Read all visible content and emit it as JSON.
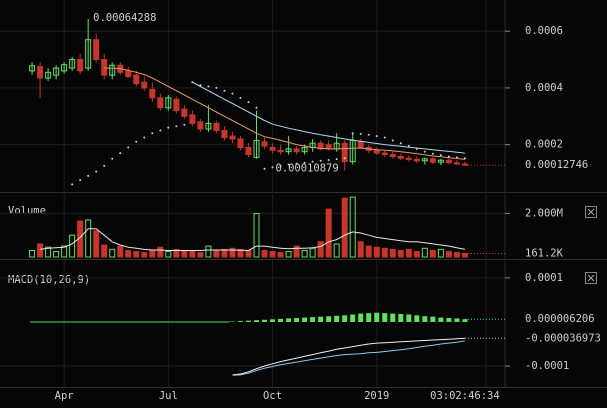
{
  "chart_data": [
    {
      "type": "candlestick",
      "xlim": [
        -4,
        59
      ],
      "xticks": [
        {
          "value": 4,
          "label": "Apr"
        },
        {
          "value": 17,
          "label": "Jul"
        },
        {
          "value": 30,
          "label": "Oct"
        },
        {
          "value": 43,
          "label": "2019"
        }
      ],
      "countdown": "03:02:46:34",
      "ylim": [
        4e-05,
        0.00071
      ],
      "yticks": [
        0.0006,
        0.0004,
        0.0002
      ],
      "grid": true,
      "up_color": "#5fe35f",
      "down_color": "#c8352c",
      "high_index": 7,
      "low_index": 39,
      "ohlc": [
        [
          0.00046,
          0.00049,
          0.000445,
          0.000478
        ],
        [
          0.000475,
          0.00049,
          0.000365,
          0.000435
        ],
        [
          0.000435,
          0.00047,
          0.000425,
          0.000455
        ],
        [
          0.000445,
          0.00048,
          0.00043,
          0.00047
        ],
        [
          0.00046,
          0.00049,
          0.00045,
          0.000482
        ],
        [
          0.00047,
          0.00051,
          0.00046,
          0.0005
        ],
        [
          0.0005,
          0.00052,
          0.00045,
          0.00046
        ],
        [
          0.00047,
          0.00064288,
          0.00046,
          0.00057
        ],
        [
          0.00057,
          0.00059,
          0.00049,
          0.0005
        ],
        [
          0.0005,
          0.00052,
          0.00043,
          0.000445
        ],
        [
          0.000445,
          0.00049,
          0.00043,
          0.00048
        ],
        [
          0.00048,
          0.00049,
          0.000445,
          0.000455
        ],
        [
          0.00046,
          0.000475,
          0.000435,
          0.00044
        ],
        [
          0.000445,
          0.00046,
          0.000405,
          0.000415
        ],
        [
          0.00042,
          0.00044,
          0.00039,
          0.0004
        ],
        [
          0.000395,
          0.00042,
          0.00035,
          0.000365
        ],
        [
          0.000365,
          0.00038,
          0.00032,
          0.00033
        ],
        [
          0.00033,
          0.000375,
          0.00032,
          0.000365
        ],
        [
          0.00036,
          0.00037,
          0.00031,
          0.00032
        ],
        [
          0.000325,
          0.00034,
          0.00029,
          0.0003
        ],
        [
          0.000305,
          0.00032,
          0.000265,
          0.000275
        ],
        [
          0.00028,
          0.00029,
          0.000245,
          0.000255
        ],
        [
          0.000255,
          0.00034,
          0.000245,
          0.000275
        ],
        [
          0.000275,
          0.000285,
          0.00024,
          0.00025
        ],
        [
          0.00025,
          0.000265,
          0.000215,
          0.000225
        ],
        [
          0.00023,
          0.000245,
          0.000205,
          0.00022
        ],
        [
          0.00022,
          0.00023,
          0.00018,
          0.00019
        ],
        [
          0.00019,
          0.000205,
          0.000155,
          0.000165
        ],
        [
          0.000155,
          0.00032,
          0.00015,
          0.000215
        ],
        [
          0.00021,
          0.000225,
          0.000185,
          0.000195
        ],
        [
          0.00019,
          0.000205,
          0.00017,
          0.00018
        ],
        [
          0.00018,
          0.0002,
          0.000165,
          0.000175
        ],
        [
          0.000175,
          0.00023,
          0.000165,
          0.000185
        ],
        [
          0.000185,
          0.000195,
          0.000165,
          0.000175
        ],
        [
          0.000175,
          0.0002,
          0.000165,
          0.00019
        ],
        [
          0.00019,
          0.00022,
          0.000175,
          0.000205
        ],
        [
          0.000205,
          0.000215,
          0.00018,
          0.000185
        ],
        [
          0.0002,
          0.000215,
          0.00018,
          0.000185
        ],
        [
          0.000185,
          0.00024,
          0.000175,
          0.000205
        ],
        [
          0.000205,
          0.000215,
          0.00010879,
          0.00014
        ],
        [
          0.00014,
          0.00024,
          0.00013,
          0.000215
        ],
        [
          0.00021,
          0.00022,
          0.000185,
          0.00019
        ],
        [
          0.00019,
          0.0002,
          0.00017,
          0.00018
        ],
        [
          0.00018,
          0.00019,
          0.000165,
          0.00017
        ],
        [
          0.00017,
          0.00018,
          0.000155,
          0.000165
        ],
        [
          0.000165,
          0.000175,
          0.00015,
          0.000158
        ],
        [
          0.000158,
          0.000168,
          0.000145,
          0.000152
        ],
        [
          0.000152,
          0.000162,
          0.00014,
          0.000148
        ],
        [
          0.000148,
          0.000158,
          0.000135,
          0.000143
        ],
        [
          0.000143,
          0.000155,
          0.00013,
          0.00015
        ],
        [
          0.00015,
          0.000156,
          0.000132,
          0.000138
        ],
        [
          0.000138,
          0.00015,
          0.000128,
          0.000145
        ],
        [
          0.000145,
          0.00015,
          0.00013,
          0.000136
        ],
        [
          0.000136,
          0.000145,
          0.000128,
          0.000132
        ],
        [
          0.000132,
          0.00014,
          0.000125,
          0.00012746
        ]
      ],
      "series": [
        {
          "color": "#e39a6a",
          "style": "line",
          "values": [
            null,
            null,
            null,
            null,
            null,
            null,
            null,
            null,
            null,
            0.00047,
            0.00047,
            0.000468,
            0.000462,
            0.000455,
            0.000447,
            0.000435,
            0.00042,
            0.000405,
            0.00039,
            0.000375,
            0.00036,
            0.000345,
            0.00033,
            0.000315,
            0.0003,
            0.000285,
            0.00027,
            0.000255,
            0.00024,
            0.000228,
            0.000222,
            0.000215,
            0.000208,
            0.0002,
            0.000195,
            0.00019,
            0.000187,
            0.000185,
            0.000185,
            0.000186,
            0.000187,
            0.000188,
            0.000185,
            0.000182,
            0.00018,
            0.000178,
            0.000175,
            0.000172,
            0.000168,
            0.000164,
            0.00016,
            0.000157,
            0.000154,
            0.000151,
            0.000148
          ]
        },
        {
          "color": "#a9d9f2",
          "style": "line",
          "values": [
            null,
            null,
            null,
            null,
            null,
            null,
            null,
            null,
            null,
            null,
            null,
            null,
            null,
            null,
            null,
            null,
            null,
            null,
            null,
            null,
            0.00042,
            0.000405,
            0.00039,
            0.000375,
            0.00036,
            0.000345,
            0.00033,
            0.000315,
            0.0003,
            0.000285,
            0.000272,
            0.000265,
            0.000258,
            0.000252,
            0.000246,
            0.00024,
            0.000235,
            0.00023,
            0.000225,
            0.00022,
            0.000216,
            0.000212,
            0.000208,
            0.000204,
            0.0002,
            0.000197,
            0.000194,
            0.000191,
            0.000188,
            0.000185,
            0.000182,
            0.000179,
            0.000176,
            0.000173,
            0.00017
          ]
        },
        {
          "color": "#cfcfcf",
          "style": "dots",
          "values": [
            null,
            null,
            null,
            null,
            null,
            6e-05,
            7.5e-05,
            9e-05,
            0.000105,
            0.000125,
            0.00015,
            0.00017,
            0.00019,
            0.00021,
            0.000225,
            0.00024,
            0.00025,
            0.00026,
            0.000265,
            0.00027,
            0.00042,
            0.00041,
            0.000405,
            0.0004,
            0.00039,
            0.00038,
            0.000365,
            0.00035,
            0.00033,
            0.000115,
            0.00012,
            0.000125,
            0.00013,
            0.000133,
            0.000136,
            0.00014,
            0.000143,
            0.000146,
            0.000149,
            0.000152,
            0.00024,
            0.000238,
            0.000235,
            0.00023,
            0.000225,
            0.000215,
            0.000205,
            0.000195,
            0.000185,
            0.000175,
            0.000168,
            0.000163,
            0.000158,
            0.000155,
            0.000152
          ]
        }
      ]
    },
    {
      "type": "volume",
      "title": "Volume",
      "ylim": [
        0,
        2800000
      ],
      "yticks": [
        {
          "value": 2000000,
          "label": "2.000M"
        }
      ],
      "values": [
        300000,
        600000,
        450000,
        250000,
        500000,
        1000000,
        1650000,
        1700000,
        1200000,
        550000,
        350000,
        500000,
        300000,
        250000,
        200000,
        300000,
        450000,
        250000,
        350000,
        300000,
        250000,
        200000,
        500000,
        300000,
        350000,
        400000,
        350000,
        300000,
        2000000,
        300000,
        250000,
        200000,
        250000,
        500000,
        300000,
        400000,
        700000,
        2200000,
        600000,
        2700000,
        2750000,
        700000,
        500000,
        450000,
        400000,
        350000,
        300000,
        350000,
        250000,
        400000,
        300000,
        350000,
        250000,
        200000,
        161200
      ],
      "value_labels": [
        null,
        null,
        null,
        null,
        null,
        null,
        null,
        null,
        null,
        null,
        null,
        null,
        null,
        null,
        null,
        null,
        null,
        null,
        null,
        null,
        null,
        null,
        null,
        null,
        null,
        null,
        null,
        null,
        null,
        null,
        null,
        null,
        null,
        null,
        null,
        null,
        null,
        null,
        null,
        null,
        null,
        null,
        null,
        null,
        null,
        null,
        null,
        null,
        null,
        null,
        null,
        null,
        null,
        null,
        "161.2K"
      ],
      "series": [
        {
          "color": "#e8e8e8",
          "values": [
            null,
            350000,
            400000,
            420000,
            450000,
            600000,
            900000,
            1300000,
            1300000,
            1000000,
            700000,
            550000,
            450000,
            400000,
            350000,
            320000,
            320000,
            300000,
            300000,
            300000,
            300000,
            300000,
            320000,
            320000,
            320000,
            320000,
            310000,
            300000,
            500000,
            500000,
            450000,
            400000,
            380000,
            400000,
            400000,
            420000,
            480000,
            700000,
            800000,
            1000000,
            1150000,
            1100000,
            1000000,
            900000,
            850000,
            800000,
            750000,
            700000,
            700000,
            650000,
            600000,
            550000,
            500000,
            420000,
            350000
          ]
        }
      ]
    },
    {
      "type": "macd",
      "title": "MACD(10,26,9)",
      "ylim": [
        -0.000143,
        0.000136
      ],
      "yticks": [
        0.0001,
        -0.0001
      ],
      "hist_color": "#5fe35f",
      "values": [
        null,
        null,
        null,
        null,
        null,
        null,
        null,
        null,
        null,
        null,
        null,
        null,
        null,
        null,
        null,
        null,
        null,
        null,
        null,
        null,
        null,
        null,
        null,
        null,
        null,
        1e-06,
        2e-06,
        3e-06,
        4e-06,
        5e-06,
        6e-06,
        7e-06,
        8e-06,
        9e-06,
        1e-05,
        1.1e-05,
        1.2e-05,
        1.3e-05,
        1.4e-05,
        1.5e-05,
        1.7e-05,
        1.9e-05,
        2e-05,
        2.1e-05,
        2e-05,
        1.9e-05,
        1.8e-05,
        1.7e-05,
        1.5e-05,
        1.3e-05,
        1.2e-05,
        1e-05,
        9e-06,
        8e-06,
        6.206e-06
      ],
      "series": [
        {
          "color": "#f0f0f0",
          "values": [
            null,
            null,
            null,
            null,
            null,
            null,
            null,
            null,
            null,
            null,
            null,
            null,
            null,
            null,
            null,
            null,
            null,
            null,
            null,
            null,
            null,
            null,
            null,
            null,
            null,
            -0.00012,
            -0.000118,
            -0.000113,
            -0.000106,
            -0.0001,
            -9.5e-05,
            -9e-05,
            -8.6e-05,
            -8.2e-05,
            -7.8e-05,
            -7.4e-05,
            -7e-05,
            -6.6e-05,
            -6.2e-05,
            -5.9e-05,
            -5.6e-05,
            -5.3e-05,
            -5e-05,
            -4.8e-05,
            -4.7e-05,
            -4.6e-05,
            -4.5e-05,
            -4.4e-05,
            -4.3e-05,
            -4.2e-05,
            -4.1e-05,
            -4e-05,
            -3.9e-05,
            -3.8e-05,
            -3.6973e-05
          ]
        },
        {
          "color": "#8fc8ea",
          "values": [
            null,
            null,
            null,
            null,
            null,
            null,
            null,
            null,
            null,
            null,
            null,
            null,
            null,
            null,
            null,
            null,
            null,
            null,
            null,
            null,
            null,
            null,
            null,
            null,
            null,
            -0.000121,
            -0.00012,
            -0.000116,
            -0.00011,
            -0.000105,
            -0.000101,
            -9.7e-05,
            -9.4e-05,
            -9.1e-05,
            -8.8e-05,
            -8.5e-05,
            -8.2e-05,
            -7.9e-05,
            -7.6e-05,
            -7.4e-05,
            -7.3e-05,
            -7.2e-05,
            -7e-05,
            -6.9e-05,
            -6.7e-05,
            -6.5e-05,
            -6.3e-05,
            -6.1e-05,
            -5.8e-05,
            -5.5e-05,
            -5.3e-05,
            -5e-05,
            -4.8e-05,
            -4.6e-05,
            -4.3e-05
          ]
        }
      ]
    }
  ]
}
